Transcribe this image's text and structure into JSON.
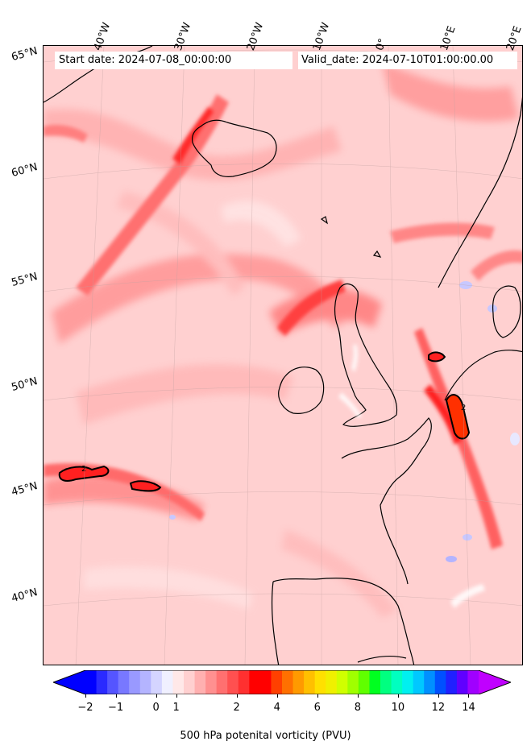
{
  "map": {
    "start_date": "Start date: 2024-07-08_00:00:00",
    "valid_date": "Valid_date: 2024-07-10T01:00:00.00",
    "lon_labels": [
      "40°W",
      "30°W",
      "20°W",
      "10°W",
      "0°",
      "10°E",
      "20°E"
    ],
    "lat_labels": [
      "65°N",
      "60°N",
      "55°N",
      "50°N",
      "45°N",
      "40°N"
    ],
    "contour_label": "2",
    "field": "500 hPa potential vorticity",
    "colors": {
      "background": "#ffd0d0",
      "light": "#ffe8e8",
      "mid": "#ff9090",
      "strong": "#ff5555",
      "max": "#ff1a1a",
      "blue_light": "#c8c8ff",
      "coast": "#000000"
    }
  },
  "colorbar": {
    "label": "500 hPa potenital vorticity (PVU)",
    "tick_labels": [
      "−2",
      "−1",
      "0",
      "1",
      "2",
      "4",
      "6",
      "8",
      "10",
      "12",
      "14"
    ],
    "colors": [
      "#0000ff",
      "#2a2aff",
      "#5555ff",
      "#7878ff",
      "#9999ff",
      "#b4b4ff",
      "#d4d4ff",
      "#f0f0ff",
      "#ffe8e8",
      "#ffd0d0",
      "#ffb0b0",
      "#ff9090",
      "#ff7070",
      "#ff5050",
      "#ff3030",
      "#ff0000",
      "#ff0000",
      "#ff4000",
      "#ff7000",
      "#ff9a00",
      "#ffc000",
      "#ffe000",
      "#f0f000",
      "#d0ff00",
      "#a0ff00",
      "#60ff00",
      "#00ff20",
      "#00ff80",
      "#00ffc0",
      "#00f0f0",
      "#00c8ff",
      "#0090ff",
      "#0050ff",
      "#2020ff",
      "#6000ff",
      "#a000ff"
    ],
    "extend_low": "#0000ff",
    "extend_high": "#c000ff"
  }
}
